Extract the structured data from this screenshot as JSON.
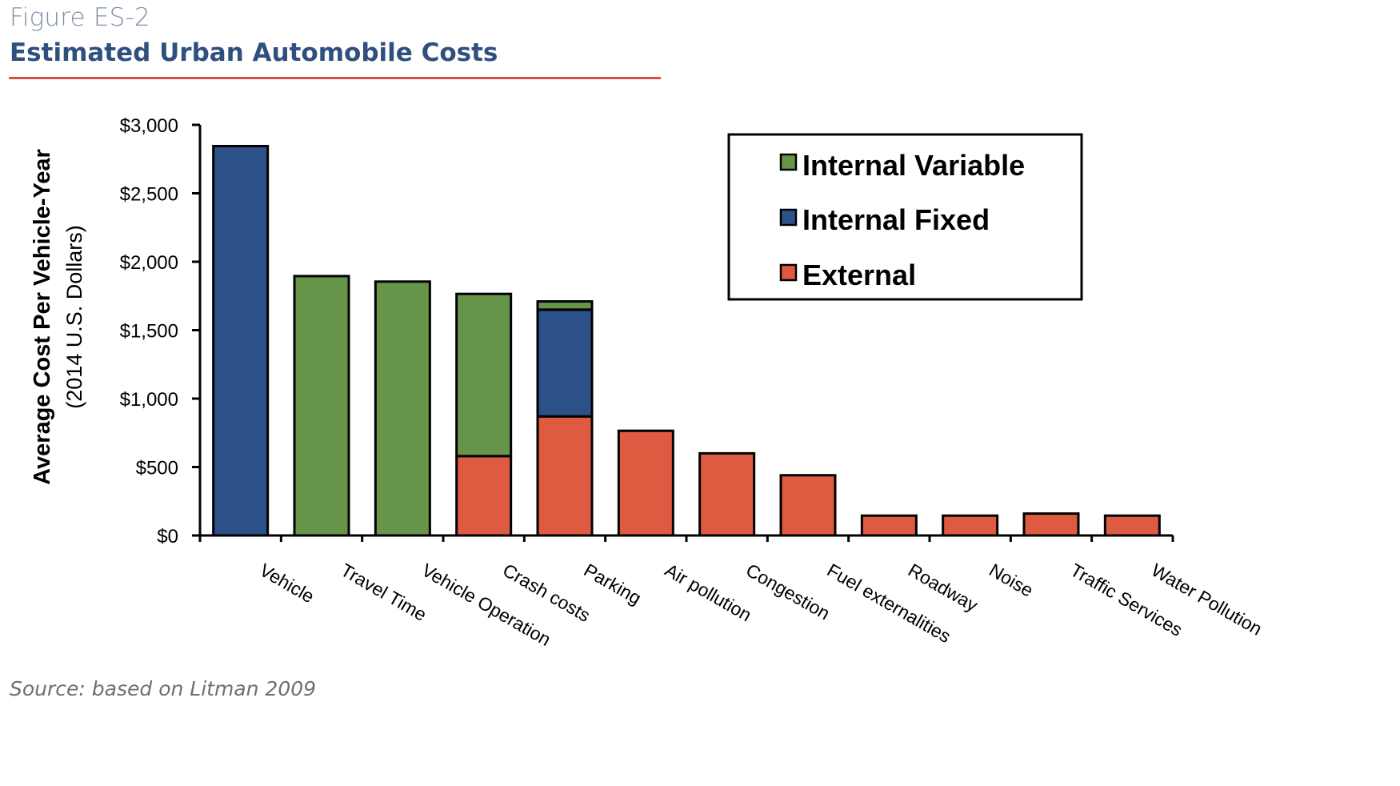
{
  "header": {
    "figure_label": "Figure ES-2",
    "title": "Estimated Urban Automobile Costs"
  },
  "footer": {
    "source": "Source: based on Litman 2009"
  },
  "colors": {
    "internal_variable": "#66954a",
    "internal_fixed": "#2c5189",
    "external": "#de5a41",
    "title": "#2f4f7e",
    "rule": "#d9503f"
  },
  "chart_data": {
    "type": "bar",
    "stacked": true,
    "title": "",
    "ylabel": "Average Cost Per Vehicle-Year",
    "ylabel_sub": "(2014 U.S. Dollars)",
    "xlabel": "",
    "ylim": [
      0,
      3000
    ],
    "yticks": [
      0,
      500,
      1000,
      1500,
      2000,
      2500,
      3000
    ],
    "ytick_labels": [
      "$0",
      "$500",
      "$1,000",
      "$1,500",
      "$2,000",
      "$2,500",
      "$3,000"
    ],
    "categories": [
      "Vehicle",
      "Travel Time",
      "Vehicle Operation",
      "Crash costs",
      "Parking",
      "Air pollution",
      "Congestion",
      "Fuel externalities",
      "Roadway",
      "Noise",
      "Traffic Services",
      "Water Pollution"
    ],
    "series": [
      {
        "name": "External",
        "color_key": "external",
        "values": [
          0,
          0,
          0,
          580,
          870,
          765,
          600,
          440,
          145,
          145,
          160,
          145
        ]
      },
      {
        "name": "Internal Fixed",
        "color_key": "internal_fixed",
        "values": [
          2845,
          0,
          0,
          0,
          780,
          0,
          0,
          0,
          0,
          0,
          0,
          0
        ]
      },
      {
        "name": "Internal Variable",
        "color_key": "internal_variable",
        "values": [
          0,
          1895,
          1855,
          1185,
          60,
          0,
          0,
          0,
          0,
          0,
          0,
          0
        ]
      }
    ],
    "legend_order": [
      "Internal Variable",
      "Internal Fixed",
      "External"
    ],
    "legend_position": "top-right",
    "grid": false
  }
}
